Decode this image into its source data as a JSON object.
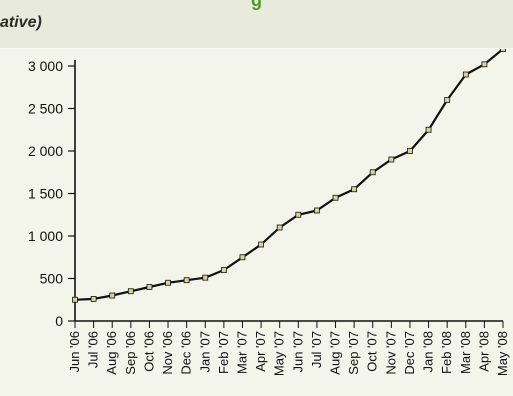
{
  "header": {
    "title_fragment": "g",
    "subtitle_fragment": "ative)"
  },
  "chart_data": {
    "type": "line",
    "categories": [
      "Jun '06",
      "Jul '06",
      "Aug '06",
      "Sep '06",
      "Oct '06",
      "Nov '06",
      "Dec '06",
      "Jan '07",
      "Feb '07",
      "Mar '07",
      "Apr '07",
      "May '07",
      "Jun '07",
      "Jul '07",
      "Aug '07",
      "Sep '07",
      "Oct '07",
      "Nov '07",
      "Dec '07",
      "Jan '08",
      "Feb '08",
      "Mar '08",
      "Apr '08",
      "May '08"
    ],
    "values": [
      250,
      260,
      300,
      350,
      400,
      450,
      480,
      510,
      600,
      750,
      900,
      1100,
      1250,
      1300,
      1450,
      1550,
      1750,
      1900,
      2000,
      2250,
      2600,
      2900,
      3020,
      3200
    ],
    "y_ticks": [
      {
        "value": 0,
        "label": "0"
      },
      {
        "value": 500,
        "label": "500"
      },
      {
        "value": 1000,
        "label": "1 000"
      },
      {
        "value": 1500,
        "label": "1 500"
      },
      {
        "value": 2000,
        "label": "2 000"
      },
      {
        "value": 2500,
        "label": "2 500"
      },
      {
        "value": 3000,
        "label": "3 000"
      }
    ],
    "ylim": [
      0,
      3000
    ],
    "grid": false,
    "line_color": "#111111",
    "marker_color": "#d8d39b"
  }
}
